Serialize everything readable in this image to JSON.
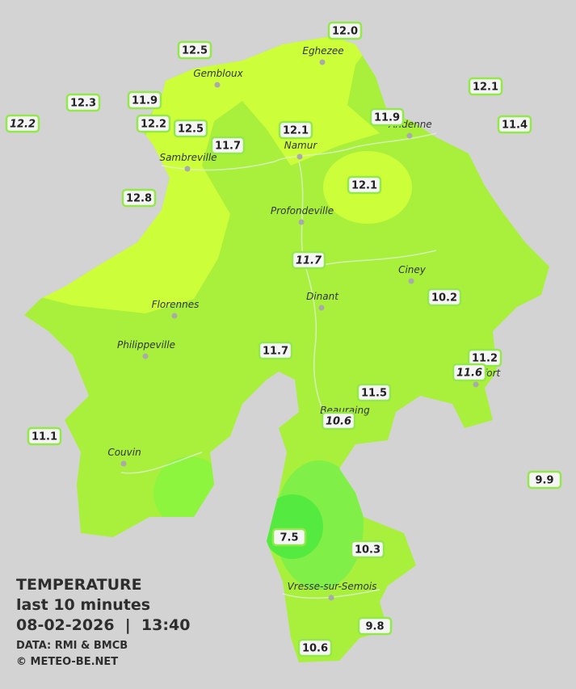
{
  "map": {
    "legend": {
      "title": "TEMPERATURE",
      "subtitle": "last 10 minutes",
      "datetime": "08-02-2026  |  13:40",
      "source": "DATA: RMI & BMCB",
      "copyright": "© METEO-BE.NET"
    },
    "towns": [
      "Eghezee",
      "Gembloux",
      "Andenne",
      "Namur",
      "Sambreville",
      "Profondeville",
      "Ciney",
      "Dinant",
      "Florennes",
      "Philippeville",
      "Rochefort",
      "Beauraing",
      "Couvin",
      "Vresse-sur-Semois"
    ],
    "stations": [
      {
        "label": "12.0",
        "italic": false
      },
      {
        "label": "12.5",
        "italic": false
      },
      {
        "label": "12.1",
        "italic": false
      },
      {
        "label": "12.3",
        "italic": false
      },
      {
        "label": "11.9",
        "italic": false
      },
      {
        "label": "12.2",
        "italic": true
      },
      {
        "label": "12.2",
        "italic": false
      },
      {
        "label": "12.5",
        "italic": false
      },
      {
        "label": "11.7",
        "italic": false
      },
      {
        "label": "12.1",
        "italic": false
      },
      {
        "label": "11.9",
        "italic": false
      },
      {
        "label": "11.4",
        "italic": false
      },
      {
        "label": "12.1",
        "italic": false
      },
      {
        "label": "12.8",
        "italic": false
      },
      {
        "label": "11.7",
        "italic": true
      },
      {
        "label": "10.2",
        "italic": false
      },
      {
        "label": "11.7",
        "italic": false
      },
      {
        "label": "11.2",
        "italic": false
      },
      {
        "label": "11.6",
        "italic": true
      },
      {
        "label": "11.5",
        "italic": false
      },
      {
        "label": "10.6",
        "italic": true
      },
      {
        "label": "11.1",
        "italic": false
      },
      {
        "label": "9.9",
        "italic": false
      },
      {
        "label": "7.5",
        "italic": false
      },
      {
        "label": "10.3",
        "italic": false
      },
      {
        "label": "9.8",
        "italic": false
      },
      {
        "label": "10.6",
        "italic": false
      }
    ]
  }
}
